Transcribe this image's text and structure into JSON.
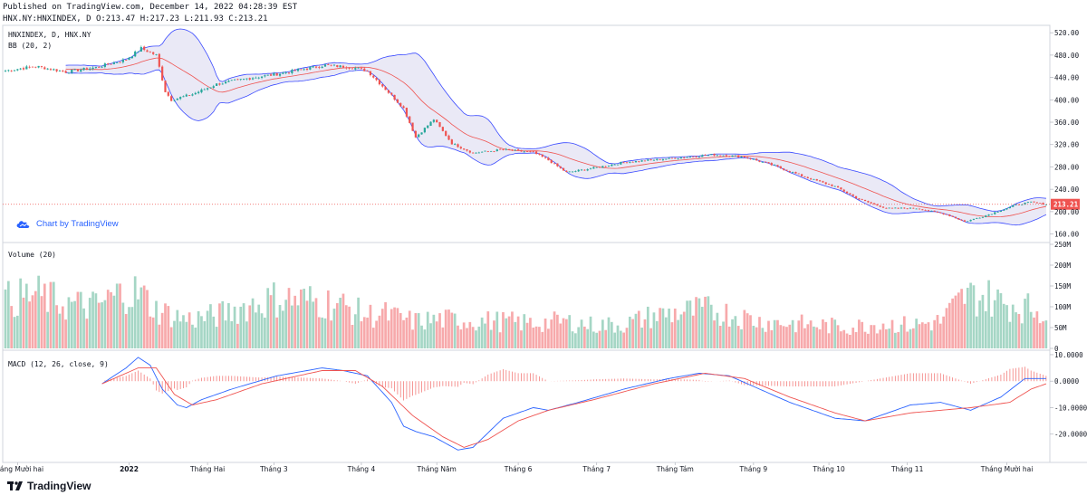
{
  "header": {
    "line1": "Published on TradingView.com, December 14, 2022 04:28:39 EST",
    "line2": "HNX.NY:HNXINDEX, D O:213.47 H:217.23 L:211.93 C:213.21"
  },
  "panes": {
    "price_title": "HNXINDEX, D, HNX.NY",
    "bb_title": "BB (20, 2)",
    "volume_title": "Volume (20)",
    "macd_title": "MACD (12, 26, close, 9)",
    "last_price_label": "213.21"
  },
  "badge": {
    "text": "Chart by TradingView",
    "icon": "tradingview-cloud-icon"
  },
  "footer": {
    "logo": "TradingView",
    "icon": "tradingview-logo-icon"
  },
  "colors": {
    "up": "#26a69a",
    "down": "#ef5350",
    "vol_up": "#a5d6c5",
    "vol_down": "#f7a9ab",
    "bb_band": "#3949ff",
    "bb_fill": "#e5e3f4",
    "bb_basis": "#ef5350",
    "macd": "#2962ff",
    "signal": "#ef5350"
  },
  "chart_data": {
    "type": "candlestick",
    "symbol": "HNX.NY:HNXINDEX",
    "last": 213.21,
    "price_axis": {
      "ticks": [
        "520.00",
        "480.00",
        "440.00",
        "400.00",
        "360.00",
        "320.00",
        "280.00",
        "240.00",
        "200.00",
        "160.00"
      ],
      "range": [
        148,
        530
      ]
    },
    "volume_axis": {
      "ticks": [
        "250M",
        "200M",
        "150M",
        "100M",
        "50M",
        "0"
      ],
      "range": [
        0,
        250
      ]
    },
    "macd_axis": {
      "ticks": [
        "10.0000",
        "0.0000",
        "-10.0000",
        "-20.0000"
      ],
      "range": [
        -30,
        11
      ]
    },
    "x_axis": {
      "labels": [
        "Tháng Mười hai",
        "2022",
        "Tháng Hai",
        "Tháng 3",
        "Tháng 4",
        "Tháng Năm",
        "Tháng 6",
        "Tháng 7",
        "Tháng Tám",
        "Tháng 9",
        "Tháng 10",
        "Tháng 11",
        "Tháng Mười hai"
      ],
      "label_bar_index": [
        4,
        41,
        67,
        89,
        118,
        143,
        170,
        196,
        222,
        248,
        273,
        299,
        332
      ]
    },
    "close_anchors": [
      [
        0,
        452
      ],
      [
        10,
        460
      ],
      [
        20,
        450
      ],
      [
        30,
        458
      ],
      [
        40,
        472
      ],
      [
        45,
        492
      ],
      [
        50,
        480
      ],
      [
        53,
        415
      ],
      [
        55,
        400
      ],
      [
        62,
        410
      ],
      [
        70,
        428
      ],
      [
        80,
        438
      ],
      [
        90,
        446
      ],
      [
        100,
        456
      ],
      [
        106,
        462
      ],
      [
        115,
        458
      ],
      [
        120,
        452
      ],
      [
        128,
        408
      ],
      [
        132,
        385
      ],
      [
        136,
        333
      ],
      [
        142,
        365
      ],
      [
        148,
        322
      ],
      [
        155,
        305
      ],
      [
        165,
        311
      ],
      [
        175,
        306
      ],
      [
        180,
        292
      ],
      [
        186,
        270
      ],
      [
        195,
        278
      ],
      [
        205,
        288
      ],
      [
        220,
        295
      ],
      [
        235,
        302
      ],
      [
        245,
        298
      ],
      [
        255,
        282
      ],
      [
        265,
        262
      ],
      [
        275,
        245
      ],
      [
        283,
        222
      ],
      [
        292,
        206
      ],
      [
        302,
        206
      ],
      [
        312,
        195
      ],
      [
        318,
        182
      ],
      [
        325,
        193
      ],
      [
        335,
        212
      ],
      [
        340,
        217
      ],
      [
        345,
        213
      ]
    ],
    "volume_anchors": [
      [
        0,
        125
      ],
      [
        10,
        140
      ],
      [
        20,
        115
      ],
      [
        30,
        110
      ],
      [
        40,
        150
      ],
      [
        45,
        140
      ],
      [
        50,
        100
      ],
      [
        60,
        75
      ],
      [
        70,
        85
      ],
      [
        80,
        110
      ],
      [
        90,
        130
      ],
      [
        100,
        125
      ],
      [
        110,
        115
      ],
      [
        120,
        85
      ],
      [
        125,
        90
      ],
      [
        135,
        70
      ],
      [
        145,
        75
      ],
      [
        155,
        72
      ],
      [
        165,
        70
      ],
      [
        175,
        65
      ],
      [
        185,
        70
      ],
      [
        195,
        60
      ],
      [
        205,
        62
      ],
      [
        215,
        85
      ],
      [
        225,
        95
      ],
      [
        232,
        100
      ],
      [
        240,
        90
      ],
      [
        250,
        70
      ],
      [
        260,
        65
      ],
      [
        270,
        60
      ],
      [
        280,
        55
      ],
      [
        290,
        65
      ],
      [
        300,
        60
      ],
      [
        310,
        70
      ],
      [
        318,
        135
      ],
      [
        325,
        135
      ],
      [
        330,
        120
      ],
      [
        345,
        95
      ]
    ],
    "macd_anchors": [
      [
        32,
        -1
      ],
      [
        40,
        5
      ],
      [
        44,
        9
      ],
      [
        48,
        6
      ],
      [
        52,
        -3
      ],
      [
        57,
        -9
      ],
      [
        60,
        -10
      ],
      [
        65,
        -7
      ],
      [
        75,
        -3
      ],
      [
        90,
        2
      ],
      [
        105,
        5
      ],
      [
        112,
        4
      ],
      [
        120,
        2
      ],
      [
        128,
        -8
      ],
      [
        132,
        -17
      ],
      [
        136,
        -19
      ],
      [
        142,
        -21
      ],
      [
        150,
        -26
      ],
      [
        155,
        -25
      ],
      [
        165,
        -14
      ],
      [
        175,
        -10
      ],
      [
        180,
        -11
      ],
      [
        190,
        -8
      ],
      [
        205,
        -3
      ],
      [
        220,
        1
      ],
      [
        230,
        3
      ],
      [
        240,
        2
      ],
      [
        250,
        -3
      ],
      [
        260,
        -8
      ],
      [
        275,
        -14
      ],
      [
        285,
        -15
      ],
      [
        300,
        -9
      ],
      [
        310,
        -8
      ],
      [
        320,
        -11
      ],
      [
        330,
        -6
      ],
      [
        338,
        1
      ],
      [
        345,
        1
      ]
    ],
    "signal_anchors": [
      [
        32,
        -1
      ],
      [
        44,
        5
      ],
      [
        50,
        5
      ],
      [
        56,
        -5
      ],
      [
        62,
        -9
      ],
      [
        70,
        -7
      ],
      [
        85,
        -1
      ],
      [
        105,
        4
      ],
      [
        116,
        4
      ],
      [
        125,
        -2
      ],
      [
        135,
        -13
      ],
      [
        145,
        -21
      ],
      [
        152,
        -25
      ],
      [
        160,
        -22
      ],
      [
        170,
        -15
      ],
      [
        180,
        -11
      ],
      [
        195,
        -7
      ],
      [
        215,
        -1
      ],
      [
        232,
        3
      ],
      [
        245,
        1
      ],
      [
        260,
        -6
      ],
      [
        275,
        -12
      ],
      [
        285,
        -15
      ],
      [
        300,
        -12
      ],
      [
        320,
        -10
      ],
      [
        333,
        -8
      ],
      [
        340,
        -3
      ],
      [
        345,
        -1
      ]
    ]
  }
}
